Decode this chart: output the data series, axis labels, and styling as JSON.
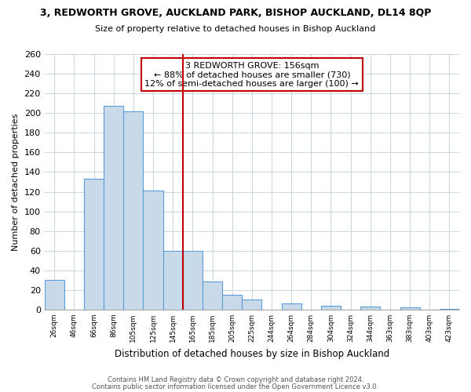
{
  "title": "3, REDWORTH GROVE, AUCKLAND PARK, BISHOP AUCKLAND, DL14 8QP",
  "subtitle": "Size of property relative to detached houses in Bishop Auckland",
  "xlabel": "Distribution of detached houses by size in Bishop Auckland",
  "ylabel": "Number of detached properties",
  "bar_labels": [
    "26sqm",
    "46sqm",
    "66sqm",
    "86sqm",
    "105sqm",
    "125sqm",
    "145sqm",
    "165sqm",
    "185sqm",
    "205sqm",
    "225sqm",
    "244sqm",
    "264sqm",
    "284sqm",
    "304sqm",
    "324sqm",
    "344sqm",
    "363sqm",
    "383sqm",
    "403sqm",
    "423sqm"
  ],
  "bar_values": [
    30,
    0,
    133,
    207,
    202,
    121,
    60,
    60,
    29,
    15,
    10,
    0,
    6,
    0,
    4,
    0,
    3,
    0,
    2,
    0,
    1
  ],
  "bar_color": "#c8daea",
  "bar_edge_color": "#5b9bd5",
  "highlight_bar_index": 6,
  "highlight_edge_color": "#c00000",
  "vline_color": "#c00000",
  "annotation_title": "3 REDWORTH GROVE: 156sqm",
  "annotation_line1": "← 88% of detached houses are smaller (730)",
  "annotation_line2": "12% of semi-detached houses are larger (100) →",
  "annotation_box_color": "#ffffff",
  "annotation_box_edge": "#c00000",
  "ylim": [
    0,
    260
  ],
  "yticks": [
    0,
    20,
    40,
    60,
    80,
    100,
    120,
    140,
    160,
    180,
    200,
    220,
    240,
    260
  ],
  "footer1": "Contains HM Land Registry data © Crown copyright and database right 2024.",
  "footer2": "Contains public sector information licensed under the Open Government Licence v3.0.",
  "background_color": "#ffffff",
  "grid_color": "#c8d4e0"
}
